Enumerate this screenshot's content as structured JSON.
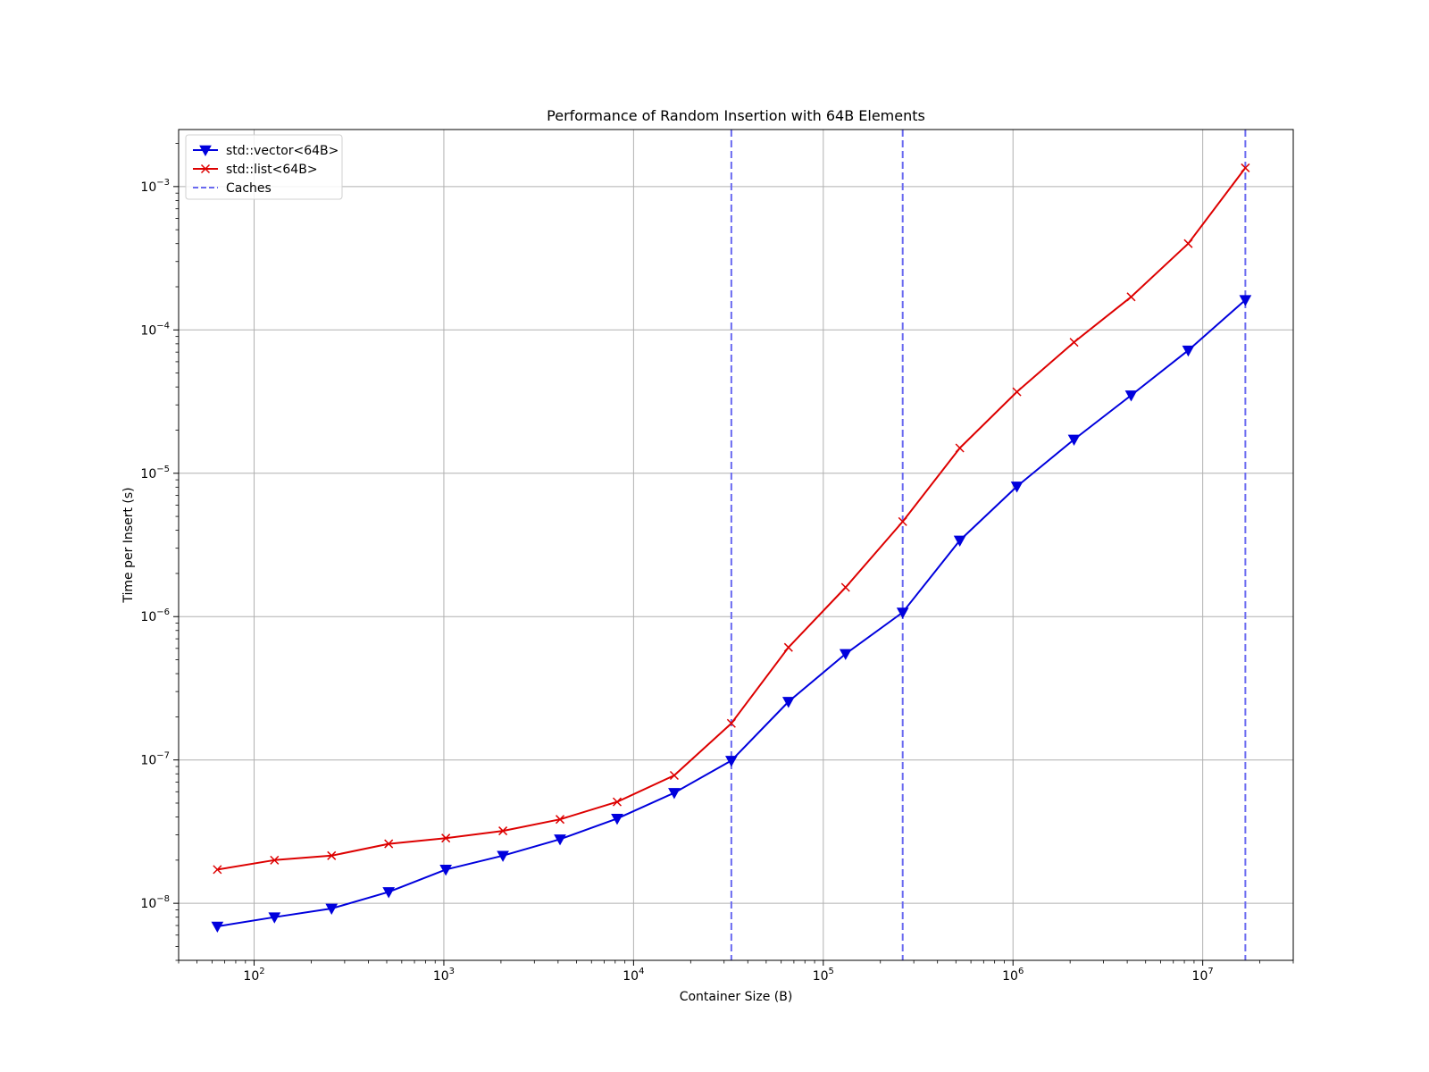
{
  "chart_data": {
    "type": "line",
    "title": "Performance of Random Insertion with 64B Elements",
    "xlabel": "Container Size (B)",
    "ylabel": "Time per Insert (s)",
    "xscale": "log",
    "yscale": "log",
    "xlim": [
      40,
      30000000
    ],
    "ylim": [
      4e-09,
      0.0025
    ],
    "grid": true,
    "legend_position": "top-left",
    "x_ticks": [
      {
        "value": 100,
        "base": "10",
        "exp": "2"
      },
      {
        "value": 1000,
        "base": "10",
        "exp": "3"
      },
      {
        "value": 10000,
        "base": "10",
        "exp": "4"
      },
      {
        "value": 100000,
        "base": "10",
        "exp": "5"
      },
      {
        "value": 1000000,
        "base": "10",
        "exp": "6"
      },
      {
        "value": 10000000,
        "base": "10",
        "exp": "7"
      }
    ],
    "y_ticks": [
      {
        "value": 1e-08,
        "base": "10",
        "exp": "−8"
      },
      {
        "value": 1e-07,
        "base": "10",
        "exp": "−7"
      },
      {
        "value": 1e-06,
        "base": "10",
        "exp": "−6"
      },
      {
        "value": 1e-05,
        "base": "10",
        "exp": "−5"
      },
      {
        "value": 0.0001,
        "base": "10",
        "exp": "−4"
      },
      {
        "value": 0.001,
        "base": "10",
        "exp": "−3"
      }
    ],
    "x": [
      64,
      128,
      256,
      512,
      1024,
      2048,
      4096,
      8192,
      16384,
      32768,
      65536,
      131072,
      262144,
      524288,
      1048576,
      2097152,
      4194304,
      8388608,
      16777216
    ],
    "series": [
      {
        "name": "std::vector<64B>",
        "color": "#0000dd",
        "marker": "triangle-down",
        "values": [
          6.9e-09,
          8e-09,
          9.2e-09,
          1.2e-08,
          1.72e-08,
          2.15e-08,
          2.8e-08,
          3.9e-08,
          5.9e-08,
          9.9e-08,
          2.55e-07,
          5.5e-07,
          1.07e-06,
          3.4e-06,
          8.1e-06,
          1.72e-05,
          3.5e-05,
          7.2e-05,
          0.000162
        ]
      },
      {
        "name": "std::list<64B>",
        "color": "#dd0000",
        "marker": "x",
        "values": [
          1.72e-08,
          2e-08,
          2.15e-08,
          2.6e-08,
          2.85e-08,
          3.2e-08,
          3.85e-08,
          5.1e-08,
          7.8e-08,
          1.8e-07,
          6.1e-07,
          1.6e-06,
          4.6e-06,
          1.5e-05,
          3.7e-05,
          8.2e-05,
          0.00017,
          0.0004,
          0.00135
        ]
      }
    ],
    "vlines": {
      "name": "Caches",
      "color": "#6a6af0",
      "style": "dashed",
      "x": [
        32768,
        262144,
        16777216
      ]
    }
  }
}
